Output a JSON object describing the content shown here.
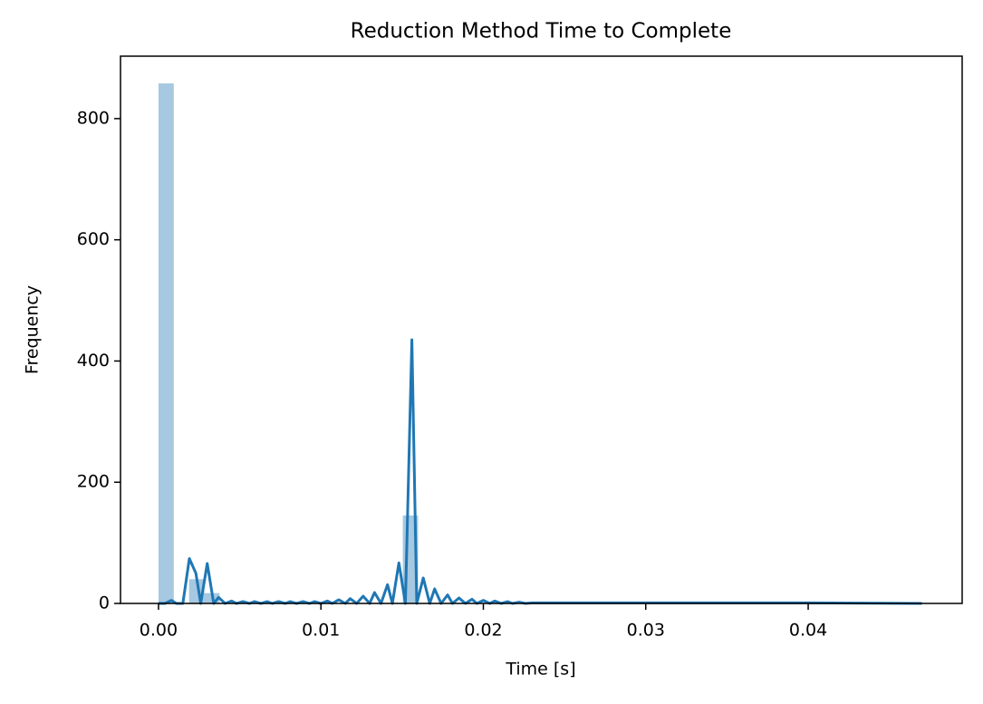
{
  "chart_data": {
    "type": "histogram",
    "title": "Reduction Method Time to Complete",
    "xlabel": "Time [s]",
    "ylabel": "Frequency",
    "bins": [
      0,
      0.00094,
      0.00188,
      0.00282,
      0.00376,
      0.0047,
      0.00564,
      0.00658,
      0.00752,
      0.00846,
      0.0094,
      0.01034,
      0.01128,
      0.01222,
      0.01316,
      0.0141,
      0.01504,
      0.01598,
      0.01692,
      0.01786,
      0.0188,
      0.01974,
      0.02068,
      0.02162,
      0.02256,
      0.0235,
      0.02444,
      0.02538,
      0.02632,
      0.02726,
      0.0282,
      0.02914,
      0.03008,
      0.03102,
      0.03196,
      0.0329,
      0.03384,
      0.03478,
      0.03572,
      0.03666,
      0.0376,
      0.03854,
      0.03948,
      0.04042,
      0.04136,
      0.0423,
      0.04324,
      0.04418,
      0.04512,
      0.04606,
      0.047
    ],
    "counts": [
      858,
      0,
      40,
      17,
      0,
      0,
      0,
      0,
      0,
      0,
      0,
      0,
      0,
      0,
      0,
      0,
      145,
      0,
      0,
      0,
      0,
      0,
      0,
      0,
      0,
      0,
      0,
      0,
      0,
      0,
      0,
      0,
      0,
      0,
      0,
      0,
      0,
      0,
      0,
      0,
      0,
      0,
      0,
      0,
      0,
      0,
      0,
      0,
      0,
      0
    ],
    "color": "#a6c8e0",
    "line": {
      "color": "#1f77b4",
      "x": [
        0,
        0.0004,
        0.0008,
        0.0011,
        0.0015,
        0.0019,
        0.0023,
        0.0026,
        0.003,
        0.0034,
        0.0037,
        0.0041,
        0.0045,
        0.0048,
        0.0052,
        0.0056,
        0.0059,
        0.0063,
        0.0067,
        0.007,
        0.0074,
        0.0078,
        0.0081,
        0.0085,
        0.0089,
        0.0093,
        0.0096,
        0.01,
        0.0104,
        0.0107,
        0.0111,
        0.0115,
        0.0118,
        0.0122,
        0.0126,
        0.013,
        0.0133,
        0.0137,
        0.0141,
        0.0144,
        0.0148,
        0.0152,
        0.0156,
        0.0159,
        0.0163,
        0.0167,
        0.017,
        0.0174,
        0.0178,
        0.0181,
        0.0185,
        0.0189,
        0.0193,
        0.0196,
        0.02,
        0.0204,
        0.0207,
        0.0211,
        0.0215,
        0.0218,
        0.0222,
        0.0226,
        0.023,
        0.03,
        0.04,
        0.047
      ],
      "y": [
        0,
        0,
        5,
        0,
        0,
        74,
        50,
        0,
        66,
        0,
        10,
        0,
        4,
        0,
        3,
        0,
        3,
        0,
        3,
        0,
        3,
        0,
        3,
        0,
        3,
        0,
        3,
        0,
        4,
        0,
        6,
        0,
        8,
        0,
        12,
        0,
        18,
        0,
        31,
        0,
        67,
        0,
        435,
        0,
        42,
        0,
        24,
        0,
        14,
        0,
        9,
        0,
        7,
        0,
        5,
        0,
        4,
        0,
        3,
        0,
        2,
        0,
        1,
        1,
        1,
        0
      ]
    },
    "xlim": [
      -0.00234,
      0.04948
    ],
    "ylim": [
      0,
      903
    ],
    "xticks": [
      {
        "value": 0,
        "label": "0.00"
      },
      {
        "value": 0.01,
        "label": "0.01"
      },
      {
        "value": 0.02,
        "label": "0.02"
      },
      {
        "value": 0.03,
        "label": "0.03"
      },
      {
        "value": 0.04,
        "label": "0.04"
      }
    ],
    "yticks": [
      0,
      200,
      400,
      600,
      800
    ]
  }
}
